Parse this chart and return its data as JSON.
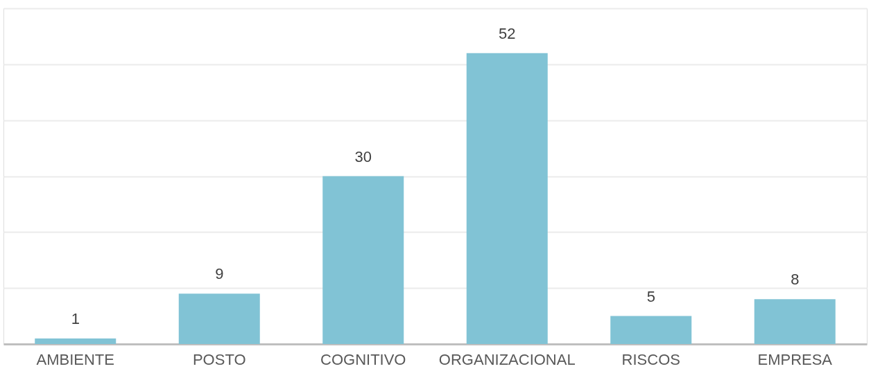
{
  "chart_data": {
    "type": "bar",
    "categories": [
      "AMBIENTE",
      "POSTO",
      "COGNITIVO",
      "ORGANIZACIONAL",
      "RISCOS",
      "EMPRESA"
    ],
    "values": [
      1,
      9,
      30,
      52,
      5,
      8
    ],
    "color": "#81c3d5",
    "ylim": [
      0,
      60
    ],
    "yticks": [
      {
        "value": 0,
        "label": null
      },
      {
        "value": 10,
        "label": null
      },
      {
        "value": 20,
        "label": null
      },
      {
        "value": 30,
        "label": null
      },
      {
        "value": 40,
        "label": null
      },
      {
        "value": 50,
        "label": null
      },
      {
        "value": 60,
        "label": null
      }
    ],
    "grid": "y",
    "data_labels": true,
    "tick_labels": "x"
  }
}
